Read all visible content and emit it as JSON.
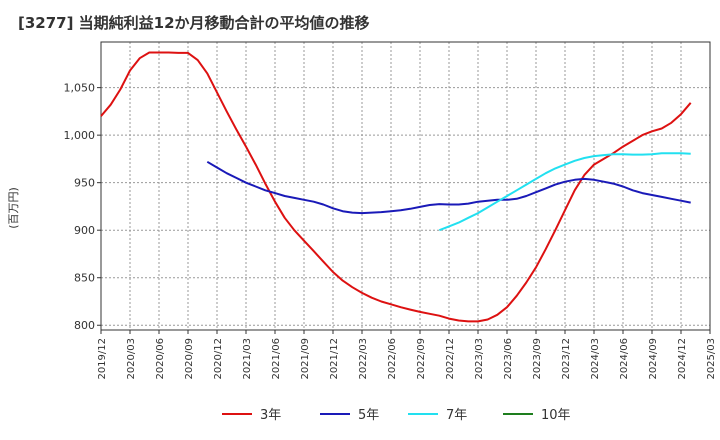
{
  "chart_data": {
    "type": "line",
    "title": "[3277]  当期純利益12か月移動合計の平均値の推移",
    "ylabel": "(百万円)",
    "ylim": [
      795,
      1098
    ],
    "yticks": [
      800,
      850,
      900,
      950,
      1000,
      1050
    ],
    "ytick_labels": [
      "800",
      "850",
      "900",
      "950",
      "1,000",
      "1,050"
    ],
    "xticks": [
      "2019/12",
      "2020/03",
      "2020/06",
      "2020/09",
      "2020/12",
      "2021/03",
      "2021/06",
      "2021/09",
      "2021/12",
      "2022/03",
      "2022/06",
      "2022/09",
      "2022/12",
      "2023/03",
      "2023/06",
      "2023/09",
      "2023/12",
      "2024/03",
      "2024/06",
      "2024/09",
      "2024/12",
      "2025/03"
    ],
    "grid": true,
    "legend_position": "bottom",
    "series": [
      {
        "name": "3年",
        "color": "#dd1111",
        "points": [
          [
            "2019/12",
            1020
          ],
          [
            "2020/01",
            1032
          ],
          [
            "2020/02",
            1048
          ],
          [
            "2020/03",
            1068
          ],
          [
            "2020/04",
            1081
          ],
          [
            "2020/05",
            1087
          ],
          [
            "2020/06",
            1087
          ],
          [
            "2020/07",
            1087
          ],
          [
            "2020/08",
            1086.5
          ],
          [
            "2020/09",
            1086.5
          ],
          [
            "2020/10",
            1079
          ],
          [
            "2020/11",
            1065
          ],
          [
            "2020/12",
            1045
          ],
          [
            "2021/01",
            1025
          ],
          [
            "2021/02",
            1006
          ],
          [
            "2021/03",
            988
          ],
          [
            "2021/04",
            969
          ],
          [
            "2021/05",
            949
          ],
          [
            "2021/06",
            930
          ],
          [
            "2021/07",
            913
          ],
          [
            "2021/08",
            900
          ],
          [
            "2021/09",
            889
          ],
          [
            "2021/10",
            878
          ],
          [
            "2021/11",
            867
          ],
          [
            "2021/12",
            856
          ],
          [
            "2022/01",
            847
          ],
          [
            "2022/02",
            840
          ],
          [
            "2022/03",
            834
          ],
          [
            "2022/04",
            829
          ],
          [
            "2022/05",
            825
          ],
          [
            "2022/06",
            822
          ],
          [
            "2022/07",
            819
          ],
          [
            "2022/08",
            816.5
          ],
          [
            "2022/09",
            814
          ],
          [
            "2022/10",
            812
          ],
          [
            "2022/11",
            810
          ],
          [
            "2022/12",
            807
          ],
          [
            "2023/01",
            805
          ],
          [
            "2023/02",
            804
          ],
          [
            "2023/03",
            804
          ],
          [
            "2023/04",
            806
          ],
          [
            "2023/05",
            811
          ],
          [
            "2023/06",
            819
          ],
          [
            "2023/07",
            831
          ],
          [
            "2023/08",
            845
          ],
          [
            "2023/09",
            861
          ],
          [
            "2023/10",
            880
          ],
          [
            "2023/11",
            900
          ],
          [
            "2023/12",
            921
          ],
          [
            "2024/01",
            942
          ],
          [
            "2024/02",
            958
          ],
          [
            "2024/03",
            969
          ],
          [
            "2024/04",
            975
          ],
          [
            "2024/05",
            981
          ],
          [
            "2024/06",
            988
          ],
          [
            "2024/07",
            994
          ],
          [
            "2024/08",
            1000
          ],
          [
            "2024/09",
            1004
          ],
          [
            "2024/10",
            1007
          ],
          [
            "2024/11",
            1013
          ],
          [
            "2024/12",
            1022
          ],
          [
            "2025/01",
            1034
          ]
        ]
      },
      {
        "name": "5年",
        "color": "#1a1ab8",
        "points": [
          [
            "2020/11",
            972
          ],
          [
            "2020/12",
            966
          ],
          [
            "2021/01",
            960
          ],
          [
            "2021/02",
            955
          ],
          [
            "2021/03",
            950
          ],
          [
            "2021/04",
            946
          ],
          [
            "2021/05",
            942
          ],
          [
            "2021/06",
            939
          ],
          [
            "2021/07",
            936
          ],
          [
            "2021/08",
            934
          ],
          [
            "2021/09",
            932
          ],
          [
            "2021/10",
            930
          ],
          [
            "2021/11",
            927
          ],
          [
            "2021/12",
            923
          ],
          [
            "2022/01",
            920
          ],
          [
            "2022/02",
            918.5
          ],
          [
            "2022/03",
            918
          ],
          [
            "2022/04",
            918.5
          ],
          [
            "2022/05",
            919
          ],
          [
            "2022/06",
            920
          ],
          [
            "2022/07",
            921
          ],
          [
            "2022/08",
            922.5
          ],
          [
            "2022/09",
            924.5
          ],
          [
            "2022/10",
            926.5
          ],
          [
            "2022/11",
            927.5
          ],
          [
            "2022/12",
            927
          ],
          [
            "2023/01",
            927
          ],
          [
            "2023/02",
            928
          ],
          [
            "2023/03",
            930
          ],
          [
            "2023/04",
            931
          ],
          [
            "2023/05",
            932
          ],
          [
            "2023/06",
            932
          ],
          [
            "2023/07",
            933
          ],
          [
            "2023/08",
            936
          ],
          [
            "2023/09",
            940
          ],
          [
            "2023/10",
            944
          ],
          [
            "2023/11",
            948
          ],
          [
            "2023/12",
            951
          ],
          [
            "2024/01",
            953
          ],
          [
            "2024/02",
            954
          ],
          [
            "2024/03",
            953
          ],
          [
            "2024/04",
            951
          ],
          [
            "2024/05",
            949
          ],
          [
            "2024/06",
            946
          ],
          [
            "2024/07",
            942
          ],
          [
            "2024/08",
            939
          ],
          [
            "2024/09",
            937
          ],
          [
            "2024/10",
            935
          ],
          [
            "2024/11",
            933
          ],
          [
            "2024/12",
            931
          ],
          [
            "2025/01",
            929
          ]
        ]
      },
      {
        "name": "7年",
        "color": "#22e0f0",
        "points": [
          [
            "2022/11",
            900
          ],
          [
            "2022/12",
            904
          ],
          [
            "2023/01",
            908
          ],
          [
            "2023/02",
            913
          ],
          [
            "2023/03",
            918
          ],
          [
            "2023/04",
            924
          ],
          [
            "2023/05",
            930
          ],
          [
            "2023/06",
            936
          ],
          [
            "2023/07",
            942
          ],
          [
            "2023/08",
            948
          ],
          [
            "2023/09",
            954
          ],
          [
            "2023/10",
            960
          ],
          [
            "2023/11",
            965
          ],
          [
            "2023/12",
            969
          ],
          [
            "2024/01",
            973
          ],
          [
            "2024/02",
            976
          ],
          [
            "2024/03",
            978
          ],
          [
            "2024/04",
            979
          ],
          [
            "2024/05",
            980
          ],
          [
            "2024/06",
            980
          ],
          [
            "2024/07",
            979.5
          ],
          [
            "2024/08",
            979.5
          ],
          [
            "2024/09",
            980
          ],
          [
            "2024/10",
            981
          ],
          [
            "2024/11",
            981
          ],
          [
            "2024/12",
            981
          ],
          [
            "2025/01",
            980.5
          ]
        ]
      },
      {
        "name": "10年",
        "color": "#1e7e1e",
        "points": []
      }
    ]
  }
}
